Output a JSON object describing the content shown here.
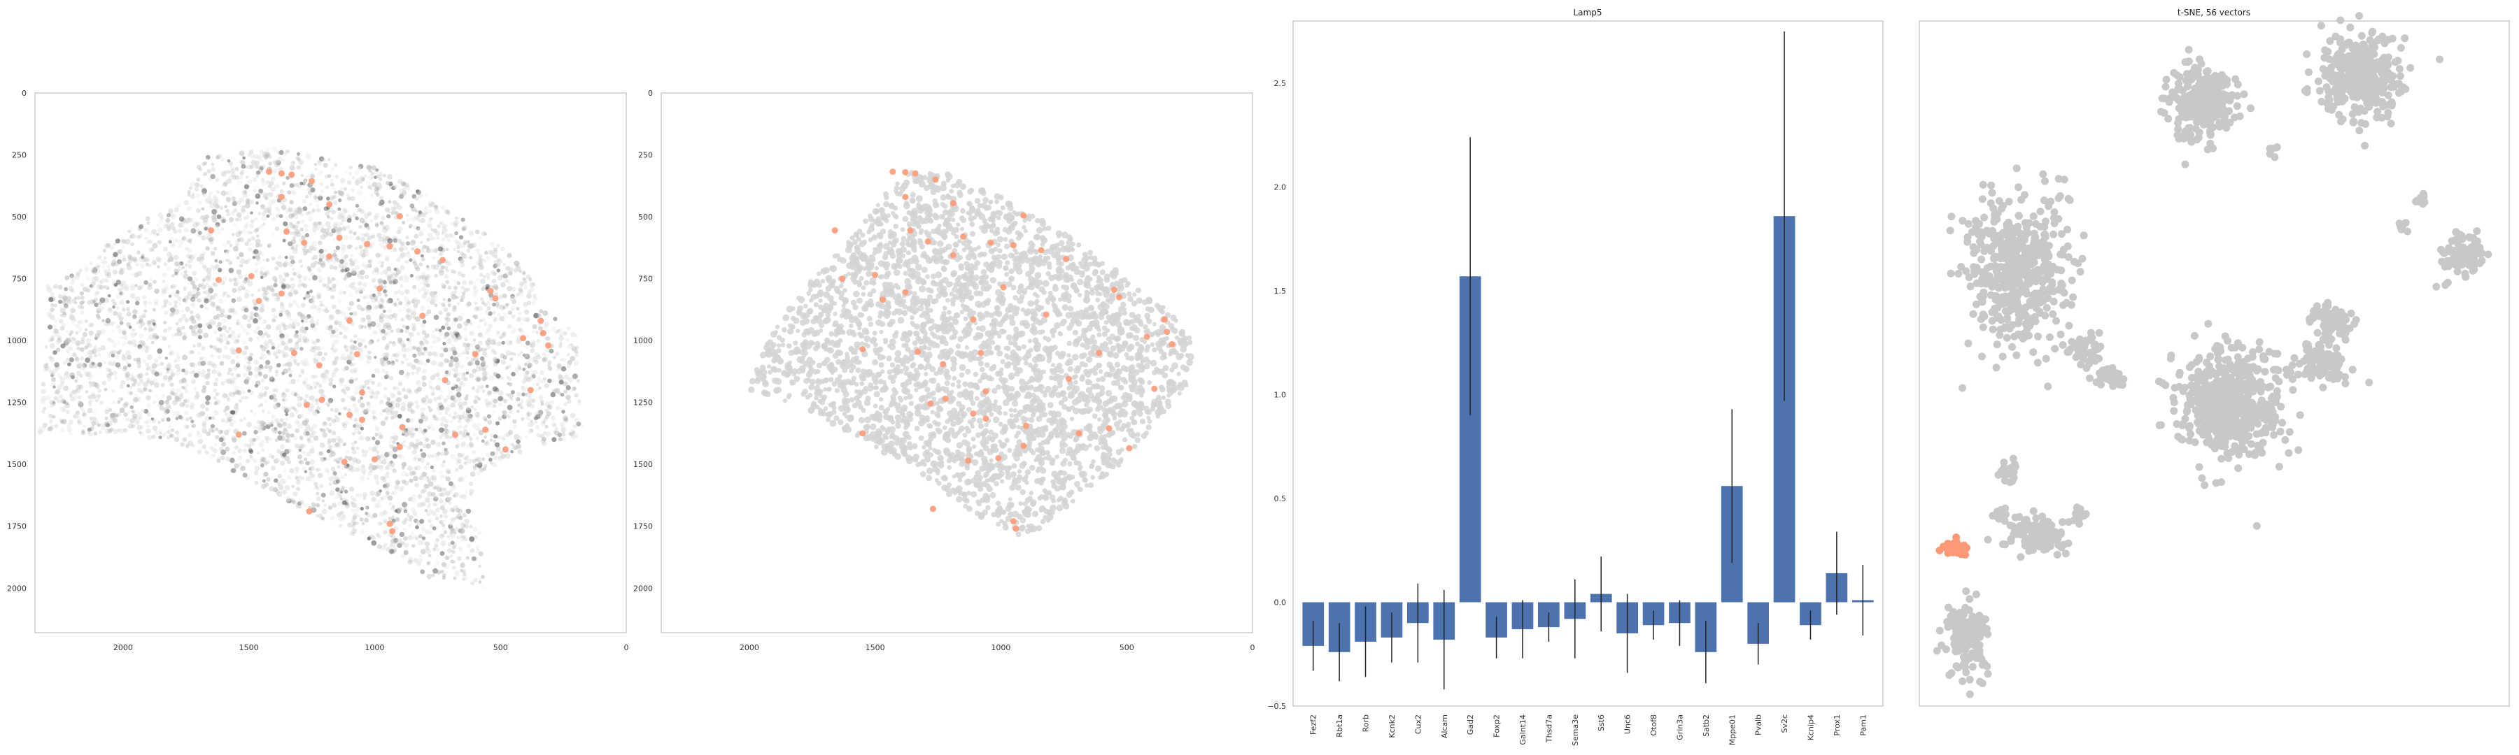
{
  "colors": {
    "gray_cell": "#d4d4d4",
    "highlight": "#ff9977",
    "bar": "#4c72b0",
    "errbar": "#222222",
    "frame": "#cccccc"
  },
  "chart_data": [
    {
      "type": "scatter",
      "title": "",
      "xlabel": "",
      "ylabel": "",
      "xlim": [
        2350,
        0
      ],
      "ylim": [
        2180,
        0
      ],
      "xticks": [
        "2000",
        "1500",
        "1000",
        "500",
        "0"
      ],
      "yticks": [
        "0",
        "250",
        "500",
        "750",
        "1000",
        "1250",
        "1500",
        "1750",
        "2000"
      ],
      "grid": false,
      "background_cells": "dense cloud of gray cells with varying intensity",
      "highlight_points": [
        [
          1420,
          318
        ],
        [
          1370,
          325
        ],
        [
          1330,
          330
        ],
        [
          1250,
          356
        ],
        [
          1370,
          420
        ],
        [
          1180,
          450
        ],
        [
          900,
          498
        ],
        [
          1650,
          555
        ],
        [
          1350,
          560
        ],
        [
          1140,
          585
        ],
        [
          1280,
          605
        ],
        [
          1030,
          610
        ],
        [
          940,
          620
        ],
        [
          830,
          640
        ],
        [
          1180,
          660
        ],
        [
          730,
          675
        ],
        [
          1490,
          740
        ],
        [
          1620,
          755
        ],
        [
          980,
          790
        ],
        [
          540,
          800
        ],
        [
          1370,
          810
        ],
        [
          520,
          830
        ],
        [
          1460,
          840
        ],
        [
          810,
          900
        ],
        [
          340,
          920
        ],
        [
          1100,
          920
        ],
        [
          330,
          970
        ],
        [
          410,
          990
        ],
        [
          310,
          1020
        ],
        [
          1540,
          1040
        ],
        [
          1320,
          1050
        ],
        [
          1070,
          1055
        ],
        [
          600,
          1055
        ],
        [
          1220,
          1100
        ],
        [
          720,
          1160
        ],
        [
          380,
          1200
        ],
        [
          1050,
          1210
        ],
        [
          1210,
          1240
        ],
        [
          1270,
          1260
        ],
        [
          1100,
          1300
        ],
        [
          1050,
          1320
        ],
        [
          890,
          1350
        ],
        [
          560,
          1360
        ],
        [
          1540,
          1380
        ],
        [
          680,
          1380
        ],
        [
          900,
          1430
        ],
        [
          480,
          1440
        ],
        [
          1000,
          1480
        ],
        [
          1120,
          1490
        ],
        [
          1260,
          1690
        ],
        [
          940,
          1740
        ],
        [
          930,
          1770
        ]
      ]
    },
    {
      "type": "scatter",
      "title": "",
      "xlabel": "",
      "ylabel": "",
      "xlim": [
        2350,
        0
      ],
      "ylim": [
        2180,
        0
      ],
      "xticks": [
        "2000",
        "1500",
        "1000",
        "500",
        "0"
      ],
      "yticks": [
        "0",
        "250",
        "500",
        "750",
        "1000",
        "1250",
        "1500",
        "1750",
        "2000"
      ],
      "grid": false,
      "background_cells": "uniform light gray cells",
      "highlight_points": [
        [
          1430,
          318
        ],
        [
          1380,
          320
        ],
        [
          1340,
          325
        ],
        [
          1260,
          350
        ],
        [
          1380,
          420
        ],
        [
          1190,
          445
        ],
        [
          910,
          495
        ],
        [
          1660,
          555
        ],
        [
          1360,
          555
        ],
        [
          1150,
          580
        ],
        [
          1290,
          600
        ],
        [
          1040,
          605
        ],
        [
          950,
          615
        ],
        [
          840,
          635
        ],
        [
          1190,
          655
        ],
        [
          740,
          670
        ],
        [
          1500,
          735
        ],
        [
          1630,
          750
        ],
        [
          990,
          785
        ],
        [
          550,
          795
        ],
        [
          1380,
          805
        ],
        [
          530,
          825
        ],
        [
          1470,
          835
        ],
        [
          820,
          895
        ],
        [
          350,
          915
        ],
        [
          1110,
          915
        ],
        [
          340,
          965
        ],
        [
          420,
          985
        ],
        [
          320,
          1015
        ],
        [
          1550,
          1035
        ],
        [
          1330,
          1045
        ],
        [
          1080,
          1050
        ],
        [
          610,
          1050
        ],
        [
          1230,
          1095
        ],
        [
          730,
          1155
        ],
        [
          390,
          1195
        ],
        [
          1060,
          1205
        ],
        [
          1220,
          1235
        ],
        [
          1280,
          1255
        ],
        [
          1110,
          1295
        ],
        [
          1060,
          1315
        ],
        [
          900,
          1345
        ],
        [
          570,
          1355
        ],
        [
          1550,
          1375
        ],
        [
          690,
          1375
        ],
        [
          910,
          1425
        ],
        [
          490,
          1435
        ],
        [
          1010,
          1475
        ],
        [
          1130,
          1485
        ],
        [
          1270,
          1680
        ],
        [
          950,
          1730
        ],
        [
          940,
          1760
        ]
      ]
    },
    {
      "type": "bar",
      "title": "Lamp5",
      "xlabel": "",
      "ylabel": "",
      "ylim": [
        -0.5,
        2.8
      ],
      "yticks": [
        "−0.5",
        "0.0",
        "0.5",
        "1.0",
        "1.5",
        "2.0",
        "2.5"
      ],
      "grid": false,
      "categories": [
        "Fezf2",
        "Rbt1a",
        "Rorb",
        "Kcnk2",
        "Cux2",
        "Alcam",
        "Gad2",
        "Foxp2",
        "Galnt14",
        "Thsd7a",
        "Sema3e",
        "Sst6",
        "Unc6",
        "Otof8",
        "Grin3a",
        "Satb2",
        "Mppe01",
        "Pvalb",
        "Sv2c",
        "Kcnip4",
        "Prox1",
        "Pam1"
      ],
      "values": [
        -0.21,
        -0.24,
        -0.19,
        -0.17,
        -0.1,
        -0.18,
        1.57,
        -0.17,
        -0.13,
        -0.12,
        -0.08,
        0.04,
        -0.15,
        -0.11,
        -0.1,
        -0.24,
        0.56,
        -0.2,
        1.86,
        -0.11,
        0.14,
        0.01
      ],
      "errors": [
        0.12,
        0.14,
        0.17,
        0.12,
        0.19,
        0.24,
        0.67,
        0.1,
        0.14,
        0.07,
        0.19,
        0.18,
        0.19,
        0.07,
        0.11,
        0.15,
        0.37,
        0.1,
        0.89,
        0.07,
        0.2,
        0.17
      ]
    },
    {
      "type": "scatter",
      "title": "t-SNE, 56 vectors",
      "xlabel": "",
      "ylabel": "",
      "grid": false,
      "axes_visible": false,
      "xlim": [
        0,
        100
      ],
      "ylim": [
        0,
        100
      ],
      "clusters": [
        {
          "cx": 48,
          "cy": 12,
          "rx": 6,
          "ry": 5.5,
          "n": 260,
          "color": "gray"
        },
        {
          "cx": 60,
          "cy": 19,
          "rx": 0.7,
          "ry": 0.7,
          "n": 6,
          "color": "gray"
        },
        {
          "cx": 75,
          "cy": 8,
          "rx": 7,
          "ry": 6,
          "n": 320,
          "color": "gray"
        },
        {
          "cx": 85,
          "cy": 26,
          "rx": 1.3,
          "ry": 1.2,
          "n": 14,
          "color": "gray"
        },
        {
          "cx": 82,
          "cy": 30,
          "rx": 1.0,
          "ry": 0.9,
          "n": 8,
          "color": "gray"
        },
        {
          "cx": 92,
          "cy": 34,
          "rx": 3.5,
          "ry": 3.5,
          "n": 90,
          "color": "gray"
        },
        {
          "cx": 17,
          "cy": 37,
          "rx": 9,
          "ry": 11,
          "n": 480,
          "color": "gray"
        },
        {
          "cx": 28,
          "cy": 48,
          "rx": 4,
          "ry": 2.5,
          "n": 50,
          "color": "gray"
        },
        {
          "cx": 53,
          "cy": 56,
          "rx": 9,
          "ry": 8,
          "n": 520,
          "color": "gray"
        },
        {
          "cx": 68,
          "cy": 50,
          "rx": 5,
          "ry": 3,
          "n": 90,
          "color": "gray"
        },
        {
          "cx": 70,
          "cy": 44,
          "rx": 4,
          "ry": 2.5,
          "n": 70,
          "color": "gray"
        },
        {
          "cx": 32,
          "cy": 52,
          "rx": 3,
          "ry": 1.5,
          "n": 30,
          "color": "gray"
        },
        {
          "cx": 15,
          "cy": 66,
          "rx": 1.5,
          "ry": 1.5,
          "n": 20,
          "color": "gray"
        },
        {
          "cx": 20,
          "cy": 75,
          "rx": 5,
          "ry": 3,
          "n": 110,
          "color": "gray"
        },
        {
          "cx": 14,
          "cy": 72,
          "rx": 1.5,
          "ry": 1.2,
          "n": 18,
          "color": "gray"
        },
        {
          "cx": 27,
          "cy": 72,
          "rx": 1.3,
          "ry": 1.3,
          "n": 15,
          "color": "gray"
        },
        {
          "cx": 6,
          "cy": 77,
          "rx": 1.8,
          "ry": 1.1,
          "n": 40,
          "color": "highlight"
        },
        {
          "cx": 8,
          "cy": 90,
          "rx": 3.5,
          "ry": 5.5,
          "n": 160,
          "color": "gray"
        }
      ]
    }
  ]
}
